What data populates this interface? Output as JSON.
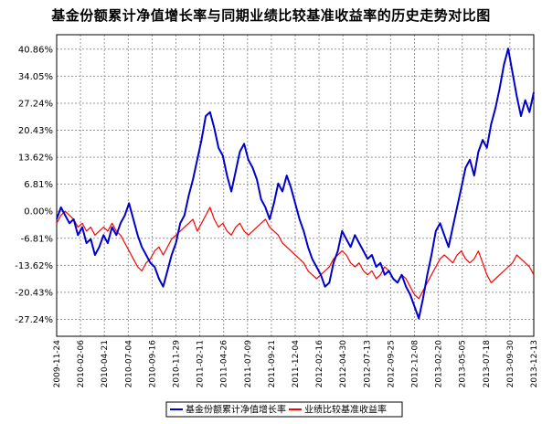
{
  "chart_data": {
    "type": "line",
    "title": "基金份额累计净值增长率与同期业绩比较基准收益率的历史走势对比图",
    "xlabel": "",
    "ylabel": "",
    "x_tick_labels": [
      "2009-11-24",
      "2010-02-06",
      "2010-04-21",
      "2010-07-04",
      "2010-09-16",
      "2010-11-29",
      "2011-02-11",
      "2011-04-26",
      "2011-07-09",
      "2011-09-21",
      "2011-12-04",
      "2012-02-16",
      "2012-04-30",
      "2012-07-13",
      "2012-09-25",
      "2012-12-08",
      "2013-02-20",
      "2013-05-05",
      "2013-07-18",
      "2013-09-30",
      "2013-12-13"
    ],
    "y_tick_labels": [
      "40.86%",
      "34.05%",
      "27.24%",
      "20.43%",
      "13.62%",
      "6.81%",
      "0.00%",
      "-6.81%",
      "-13.62%",
      "-20.43%",
      "-27.24%"
    ],
    "y_tick_values": [
      40.86,
      34.05,
      27.24,
      20.43,
      13.62,
      6.81,
      0.0,
      -6.81,
      -13.62,
      -20.43,
      -27.24
    ],
    "ylim": [
      -31.5,
      44.5
    ],
    "grid": true,
    "legend_position": "bottom",
    "series": [
      {
        "name": "基金份额累计净值增长率",
        "color": "#0000cc",
        "points": [
          [
            0,
            -2
          ],
          [
            2,
            1
          ],
          [
            4,
            -1
          ],
          [
            6,
            -3
          ],
          [
            8,
            -2
          ],
          [
            10,
            -6
          ],
          [
            12,
            -4
          ],
          [
            14,
            -8
          ],
          [
            16,
            -7
          ],
          [
            18,
            -11
          ],
          [
            20,
            -9
          ],
          [
            22,
            -6
          ],
          [
            24,
            -8
          ],
          [
            26,
            -4
          ],
          [
            28,
            -6
          ],
          [
            30,
            -3
          ],
          [
            32,
            -1
          ],
          [
            34,
            2
          ],
          [
            36,
            -2
          ],
          [
            38,
            -6
          ],
          [
            40,
            -9
          ],
          [
            42,
            -11
          ],
          [
            44,
            -13
          ],
          [
            46,
            -14
          ],
          [
            48,
            -17
          ],
          [
            50,
            -19
          ],
          [
            52,
            -15
          ],
          [
            54,
            -11
          ],
          [
            56,
            -8
          ],
          [
            58,
            -3
          ],
          [
            60,
            -1
          ],
          [
            62,
            4
          ],
          [
            64,
            8
          ],
          [
            66,
            13
          ],
          [
            68,
            18
          ],
          [
            70,
            24
          ],
          [
            72,
            25
          ],
          [
            74,
            21
          ],
          [
            76,
            16
          ],
          [
            78,
            14
          ],
          [
            80,
            9
          ],
          [
            82,
            5
          ],
          [
            84,
            10
          ],
          [
            86,
            15
          ],
          [
            88,
            17
          ],
          [
            90,
            13
          ],
          [
            92,
            11
          ],
          [
            94,
            8
          ],
          [
            96,
            3
          ],
          [
            98,
            1
          ],
          [
            100,
            -2
          ],
          [
            102,
            2
          ],
          [
            104,
            7
          ],
          [
            106,
            5
          ],
          [
            108,
            9
          ],
          [
            110,
            6
          ],
          [
            112,
            2
          ],
          [
            114,
            -2
          ],
          [
            116,
            -5
          ],
          [
            118,
            -9
          ],
          [
            120,
            -12
          ],
          [
            122,
            -14
          ],
          [
            124,
            -16
          ],
          [
            126,
            -19
          ],
          [
            128,
            -18
          ],
          [
            130,
            -13
          ],
          [
            132,
            -10
          ],
          [
            134,
            -5
          ],
          [
            136,
            -7
          ],
          [
            138,
            -9
          ],
          [
            140,
            -6
          ],
          [
            142,
            -8
          ],
          [
            144,
            -10
          ],
          [
            146,
            -12
          ],
          [
            148,
            -11
          ],
          [
            150,
            -14
          ],
          [
            152,
            -13
          ],
          [
            154,
            -16
          ],
          [
            156,
            -15
          ],
          [
            158,
            -17
          ],
          [
            160,
            -18
          ],
          [
            162,
            -16
          ],
          [
            164,
            -19
          ],
          [
            166,
            -21
          ],
          [
            168,
            -24
          ],
          [
            170,
            -27
          ],
          [
            172,
            -22
          ],
          [
            174,
            -16
          ],
          [
            176,
            -11
          ],
          [
            178,
            -5
          ],
          [
            180,
            -3
          ],
          [
            182,
            -6
          ],
          [
            184,
            -9
          ],
          [
            186,
            -4
          ],
          [
            188,
            1
          ],
          [
            190,
            6
          ],
          [
            192,
            11
          ],
          [
            194,
            13
          ],
          [
            196,
            9
          ],
          [
            198,
            15
          ],
          [
            200,
            18
          ],
          [
            202,
            16
          ],
          [
            204,
            22
          ],
          [
            206,
            26
          ],
          [
            208,
            31
          ],
          [
            210,
            37
          ],
          [
            212,
            41
          ],
          [
            214,
            35
          ],
          [
            216,
            29
          ],
          [
            218,
            24
          ],
          [
            220,
            28
          ],
          [
            222,
            25
          ],
          [
            224,
            30
          ]
        ]
      },
      {
        "name": "业绩比较基准收益率",
        "color": "#ff0000",
        "points": [
          [
            0,
            -3
          ],
          [
            2,
            -1
          ],
          [
            4,
            0
          ],
          [
            6,
            -1
          ],
          [
            8,
            -2
          ],
          [
            10,
            -4
          ],
          [
            12,
            -3
          ],
          [
            14,
            -5
          ],
          [
            16,
            -4
          ],
          [
            18,
            -6
          ],
          [
            20,
            -5
          ],
          [
            22,
            -4
          ],
          [
            24,
            -5
          ],
          [
            26,
            -3
          ],
          [
            28,
            -5
          ],
          [
            30,
            -6
          ],
          [
            32,
            -8
          ],
          [
            34,
            -10
          ],
          [
            36,
            -12
          ],
          [
            38,
            -14
          ],
          [
            40,
            -15
          ],
          [
            42,
            -13
          ],
          [
            44,
            -12
          ],
          [
            46,
            -10
          ],
          [
            48,
            -9
          ],
          [
            50,
            -11
          ],
          [
            52,
            -9
          ],
          [
            54,
            -7
          ],
          [
            56,
            -6
          ],
          [
            58,
            -5
          ],
          [
            60,
            -4
          ],
          [
            62,
            -3
          ],
          [
            64,
            -2
          ],
          [
            66,
            -5
          ],
          [
            68,
            -3
          ],
          [
            70,
            -1
          ],
          [
            72,
            1
          ],
          [
            74,
            -2
          ],
          [
            76,
            -4
          ],
          [
            78,
            -3
          ],
          [
            80,
            -5
          ],
          [
            82,
            -6
          ],
          [
            84,
            -4
          ],
          [
            86,
            -3
          ],
          [
            88,
            -5
          ],
          [
            90,
            -6
          ],
          [
            92,
            -5
          ],
          [
            94,
            -4
          ],
          [
            96,
            -3
          ],
          [
            98,
            -2
          ],
          [
            100,
            -4
          ],
          [
            102,
            -5
          ],
          [
            104,
            -6
          ],
          [
            106,
            -8
          ],
          [
            108,
            -9
          ],
          [
            110,
            -10
          ],
          [
            112,
            -11
          ],
          [
            114,
            -12
          ],
          [
            116,
            -13
          ],
          [
            118,
            -15
          ],
          [
            120,
            -16
          ],
          [
            122,
            -17
          ],
          [
            124,
            -16
          ],
          [
            126,
            -15
          ],
          [
            128,
            -14
          ],
          [
            130,
            -12
          ],
          [
            132,
            -11
          ],
          [
            134,
            -10
          ],
          [
            136,
            -11
          ],
          [
            138,
            -13
          ],
          [
            140,
            -14
          ],
          [
            142,
            -13
          ],
          [
            144,
            -15
          ],
          [
            146,
            -16
          ],
          [
            148,
            -15
          ],
          [
            150,
            -17
          ],
          [
            152,
            -16
          ],
          [
            154,
            -14
          ],
          [
            156,
            -15
          ],
          [
            158,
            -17
          ],
          [
            160,
            -18
          ],
          [
            162,
            -16
          ],
          [
            164,
            -17
          ],
          [
            166,
            -19
          ],
          [
            168,
            -21
          ],
          [
            170,
            -22
          ],
          [
            172,
            -20
          ],
          [
            174,
            -18
          ],
          [
            176,
            -16
          ],
          [
            178,
            -14
          ],
          [
            180,
            -12
          ],
          [
            182,
            -11
          ],
          [
            184,
            -12
          ],
          [
            186,
            -13
          ],
          [
            188,
            -11
          ],
          [
            190,
            -10
          ],
          [
            192,
            -12
          ],
          [
            194,
            -13
          ],
          [
            196,
            -12
          ],
          [
            198,
            -10
          ],
          [
            200,
            -13
          ],
          [
            202,
            -16
          ],
          [
            204,
            -18
          ],
          [
            206,
            -17
          ],
          [
            208,
            -16
          ],
          [
            210,
            -15
          ],
          [
            212,
            -14
          ],
          [
            214,
            -13
          ],
          [
            216,
            -11
          ],
          [
            218,
            -12
          ],
          [
            220,
            -13
          ],
          [
            222,
            -14
          ],
          [
            224,
            -16
          ]
        ]
      }
    ]
  }
}
